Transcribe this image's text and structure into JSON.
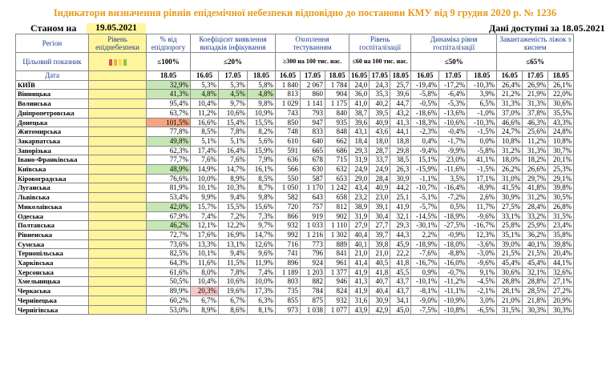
{
  "title": "Індикатори визначення рівнів епідемічної небезпеки відповідно до постанови КМУ від 9 грудня 2020 р. № 1236",
  "status_label": "Станом на",
  "status_date": "19.05.2021",
  "available": "Дані доступні за 18.05.2021",
  "headers": {
    "region": "Регіон",
    "level": "Рівень епіднебезпеки",
    "pct": "% від епідпорогу",
    "coef": "Коефіцієнт виявлення випадків інфікування",
    "testing": "Охоплення тестуванням",
    "hosp": "Рівень госпіталізації",
    "dyn": "Динаміка рівня госпіталізації",
    "beds": "Завантаженість ліжок з киснем",
    "indicator": "Цільовий показник",
    "date": "Дата"
  },
  "targets": {
    "pct": "≤100%",
    "coef": "≤20%",
    "testing": "≥300 на 100 тис. нас.",
    "hosp": "≤60 на 100 тис. нас.",
    "dyn": "≤50%",
    "beds": "≤65%"
  },
  "dates": {
    "d18": "18.05",
    "d16": "16.05",
    "d17": "17.05"
  },
  "level_colors": [
    "#d9534f",
    "#f0ad4e",
    "#f7e04b",
    "#8cc152"
  ],
  "rows": [
    {
      "name": "КИЇВ",
      "pct": "32,9%",
      "pct_c": "grn",
      "c": [
        "5,3%",
        "5,3%",
        "5,8%"
      ],
      "cc": [
        "",
        "",
        ""
      ],
      "t": [
        "1 840",
        "2 067",
        "1 784"
      ],
      "h": [
        "24,0",
        "24,3",
        "25,7"
      ],
      "d": [
        "-19,4%",
        "-17,2%",
        "-10,3%"
      ],
      "b": [
        "26,4%",
        "26,9%",
        "26,1%"
      ]
    },
    {
      "name": "Вінницька",
      "pct": "41,3%",
      "pct_c": "grn",
      "c": [
        "4,8%",
        "4,5%",
        "4,8%"
      ],
      "cc": [
        "grn",
        "grn",
        "grn"
      ],
      "t": [
        "813",
        "860",
        "904"
      ],
      "h": [
        "36,0",
        "35,3",
        "39,6"
      ],
      "d": [
        "-5,8%",
        "-6,4%",
        "3,9%"
      ],
      "b": [
        "21,2%",
        "21,9%",
        "22,0%"
      ]
    },
    {
      "name": "Волинська",
      "pct": "95,4%",
      "pct_c": "",
      "c": [
        "10,4%",
        "9,7%",
        "9,8%"
      ],
      "cc": [
        "",
        "",
        ""
      ],
      "t": [
        "1 029",
        "1 141",
        "1 175"
      ],
      "h": [
        "41,0",
        "40,2",
        "44,7"
      ],
      "d": [
        "-0,5%",
        "-5,3%",
        "6,5%"
      ],
      "b": [
        "31,3%",
        "31,3%",
        "30,6%"
      ]
    },
    {
      "name": "Дніпропетровська",
      "pct": "63,7%",
      "pct_c": "",
      "c": [
        "11,2%",
        "10,6%",
        "10,9%"
      ],
      "cc": [
        "",
        "",
        ""
      ],
      "t": [
        "743",
        "793",
        "840"
      ],
      "h": [
        "38,7",
        "39,5",
        "43,2"
      ],
      "d": [
        "-18,6%",
        "-13,6%",
        "-1,0%"
      ],
      "b": [
        "37,0%",
        "37,8%",
        "35,5%"
      ]
    },
    {
      "name": "Донецька",
      "pct": "101,5%",
      "pct_c": "red",
      "c": [
        "16,6%",
        "15,4%",
        "15,5%"
      ],
      "cc": [
        "",
        "",
        ""
      ],
      "t": [
        "850",
        "947",
        "935"
      ],
      "h": [
        "39,6",
        "40,9",
        "41,3"
      ],
      "d": [
        "-18,3%",
        "-10,6%",
        "-10,3%"
      ],
      "b": [
        "46,6%",
        "46,3%",
        "43,3%"
      ]
    },
    {
      "name": "Житомирська",
      "pct": "77,8%",
      "pct_c": "",
      "c": [
        "8,5%",
        "7,8%",
        "8,2%"
      ],
      "cc": [
        "",
        "",
        ""
      ],
      "t": [
        "748",
        "833",
        "848"
      ],
      "h": [
        "43,1",
        "43,6",
        "44,1"
      ],
      "d": [
        "-2,3%",
        "-0,4%",
        "-1,5%"
      ],
      "b": [
        "24,7%",
        "25,6%",
        "24,8%"
      ]
    },
    {
      "name": "Закарпатська",
      "pct": "49,8%",
      "pct_c": "grn",
      "c": [
        "5,1%",
        "5,1%",
        "5,6%"
      ],
      "cc": [
        "",
        "",
        ""
      ],
      "t": [
        "610",
        "640",
        "662"
      ],
      "h": [
        "18,4",
        "18,0",
        "18,8"
      ],
      "d": [
        "0,4%",
        "-1,7%",
        "0,0%"
      ],
      "b": [
        "10,8%",
        "11,2%",
        "10,8%"
      ]
    },
    {
      "name": "Запорізька",
      "pct": "62,3%",
      "pct_c": "",
      "c": [
        "17,4%",
        "16,4%",
        "15,9%"
      ],
      "cc": [
        "",
        "",
        ""
      ],
      "t": [
        "591",
        "665",
        "686"
      ],
      "h": [
        "29,3",
        "28,7",
        "29,8"
      ],
      "d": [
        "-9,4%",
        "-9,9%",
        "-5,8%"
      ],
      "b": [
        "31,2%",
        "31,3%",
        "30,7%"
      ]
    },
    {
      "name": "Івано-Франківська",
      "pct": "77,7%",
      "pct_c": "",
      "c": [
        "7,6%",
        "7,6%",
        "7,9%"
      ],
      "cc": [
        "",
        "",
        ""
      ],
      "t": [
        "636",
        "678",
        "715"
      ],
      "h": [
        "31,9",
        "33,7",
        "38,5"
      ],
      "d": [
        "15,1%",
        "23,0%",
        "41,1%"
      ],
      "b": [
        "18,0%",
        "18,2%",
        "20,1%"
      ]
    },
    {
      "name": "Київська",
      "pct": "48,9%",
      "pct_c": "grn",
      "c": [
        "14,9%",
        "14,7%",
        "16,1%"
      ],
      "cc": [
        "",
        "",
        ""
      ],
      "t": [
        "566",
        "630",
        "632"
      ],
      "h": [
        "24,9",
        "24,9",
        "26,3"
      ],
      "d": [
        "-15,9%",
        "-11,6%",
        "-1,5%"
      ],
      "b": [
        "26,2%",
        "26,6%",
        "25,3%"
      ]
    },
    {
      "name": "Кіровоградська",
      "pct": "76,6%",
      "pct_c": "",
      "c": [
        "10,0%",
        "8,9%",
        "8,5%"
      ],
      "cc": [
        "",
        "",
        ""
      ],
      "t": [
        "550",
        "587",
        "653"
      ],
      "h": [
        "29,0",
        "28,4",
        "30,9"
      ],
      "d": [
        "-1,1%",
        "3,5%",
        "17,1%"
      ],
      "b": [
        "31,0%",
        "29,7%",
        "29,1%"
      ]
    },
    {
      "name": "Луганська",
      "pct": "81,9%",
      "pct_c": "",
      "c": [
        "10,1%",
        "10,3%",
        "8,7%"
      ],
      "cc": [
        "",
        "",
        ""
      ],
      "t": [
        "1 050",
        "1 170",
        "1 242"
      ],
      "h": [
        "43,4",
        "40,9",
        "44,2"
      ],
      "d": [
        "-10,7%",
        "-16,4%",
        "-8,9%"
      ],
      "b": [
        "41,5%",
        "41,8%",
        "39,8%"
      ]
    },
    {
      "name": "Львівська",
      "pct": "53,4%",
      "pct_c": "",
      "c": [
        "9,9%",
        "9,4%",
        "9,8%"
      ],
      "cc": [
        "",
        "",
        ""
      ],
      "t": [
        "582",
        "643",
        "658"
      ],
      "h": [
        "23,2",
        "23,0",
        "25,1"
      ],
      "d": [
        "-5,1%",
        "-7,2%",
        "2,6%"
      ],
      "b": [
        "30,9%",
        "31,2%",
        "30,5%"
      ]
    },
    {
      "name": "Миколаївська",
      "pct": "42,0%",
      "pct_c": "grn",
      "c": [
        "15,7%",
        "15,5%",
        "15,6%"
      ],
      "cc": [
        "",
        "",
        ""
      ],
      "t": [
        "720",
        "757",
        "812"
      ],
      "h": [
        "38,9",
        "39,1",
        "41,9"
      ],
      "d": [
        "-5,7%",
        "0,5%",
        "11,7%"
      ],
      "b": [
        "27,5%",
        "28,4%",
        "26,8%"
      ]
    },
    {
      "name": "Одеська",
      "pct": "67,9%",
      "pct_c": "",
      "c": [
        "7,4%",
        "7,2%",
        "7,3%"
      ],
      "cc": [
        "",
        "",
        ""
      ],
      "t": [
        "866",
        "919",
        "902"
      ],
      "h": [
        "31,9",
        "30,4",
        "32,1"
      ],
      "d": [
        "-14,5%",
        "-18,9%",
        "-9,6%"
      ],
      "b": [
        "33,1%",
        "33,2%",
        "31,5%"
      ]
    },
    {
      "name": "Полтавська",
      "pct": "46,2%",
      "pct_c": "grn",
      "c": [
        "12,1%",
        "12,2%",
        "9,7%"
      ],
      "cc": [
        "",
        "",
        ""
      ],
      "t": [
        "932",
        "1 033",
        "1 110"
      ],
      "h": [
        "27,9",
        "27,7",
        "29,3"
      ],
      "d": [
        "-30,1%",
        "-27,5%",
        "-16,7%"
      ],
      "b": [
        "25,8%",
        "25,9%",
        "23,4%"
      ]
    },
    {
      "name": "Рівненська",
      "pct": "72,7%",
      "pct_c": "",
      "c": [
        "17,6%",
        "16,9%",
        "14,7%"
      ],
      "cc": [
        "",
        "",
        ""
      ],
      "t": [
        "992",
        "1 216",
        "1 302"
      ],
      "h": [
        "40,4",
        "39,7",
        "44,3"
      ],
      "d": [
        "2,2%",
        "-0,9%",
        "12,3%"
      ],
      "b": [
        "35,1%",
        "36,2%",
        "35,8%"
      ]
    },
    {
      "name": "Сумська",
      "pct": "73,6%",
      "pct_c": "",
      "c": [
        "13,3%",
        "13,1%",
        "12,6%"
      ],
      "cc": [
        "",
        "",
        ""
      ],
      "t": [
        "716",
        "773",
        "889"
      ],
      "h": [
        "40,1",
        "39,8",
        "45,9"
      ],
      "d": [
        "-18,9%",
        "-18,0%",
        "-3,6%"
      ],
      "b": [
        "39,0%",
        "40,1%",
        "39,8%"
      ]
    },
    {
      "name": "Тернопільська",
      "pct": "82,5%",
      "pct_c": "",
      "c": [
        "10,1%",
        "9,4%",
        "9,6%"
      ],
      "cc": [
        "",
        "",
        ""
      ],
      "t": [
        "741",
        "796",
        "841"
      ],
      "h": [
        "21,0",
        "21,0",
        "22,2"
      ],
      "d": [
        "-7,6%",
        "-8,8%",
        "-3,0%"
      ],
      "b": [
        "21,5%",
        "21,5%",
        "20,4%"
      ]
    },
    {
      "name": "Харківська",
      "pct": "64,3%",
      "pct_c": "",
      "c": [
        "11,6%",
        "11,5%",
        "11,9%"
      ],
      "cc": [
        "",
        "",
        ""
      ],
      "t": [
        "896",
        "924",
        "961"
      ],
      "h": [
        "41,4",
        "40,5",
        "41,8"
      ],
      "d": [
        "-16,7%",
        "-16,0%",
        "-9,6%"
      ],
      "b": [
        "45,4%",
        "45,4%",
        "44,1%"
      ]
    },
    {
      "name": "Херсонська",
      "pct": "61,6%",
      "pct_c": "",
      "c": [
        "8,0%",
        "7,8%",
        "7,4%"
      ],
      "cc": [
        "",
        "",
        ""
      ],
      "t": [
        "1 189",
        "1 203",
        "1 377"
      ],
      "h": [
        "41,9",
        "41,8",
        "45,5"
      ],
      "d": [
        "0,9%",
        "-0,7%",
        "9,1%"
      ],
      "b": [
        "30,6%",
        "32,1%",
        "32,6%"
      ]
    },
    {
      "name": "Хмельницька",
      "pct": "50,5%",
      "pct_c": "",
      "c": [
        "10,4%",
        "10,6%",
        "10,0%"
      ],
      "cc": [
        "",
        "",
        ""
      ],
      "t": [
        "803",
        "882",
        "946"
      ],
      "h": [
        "41,3",
        "40,7",
        "43,7"
      ],
      "d": [
        "-10,1%",
        "-11,2%",
        "-4,5%"
      ],
      "b": [
        "28,8%",
        "28,8%",
        "27,1%"
      ]
    },
    {
      "name": "Черкаська",
      "pct": "89,9%",
      "pct_c": "",
      "c": [
        "20,3%",
        "19,6%",
        "17,3%"
      ],
      "cc": [
        "pink",
        "",
        ""
      ],
      "t": [
        "735",
        "784",
        "824"
      ],
      "h": [
        "41,9",
        "40,4",
        "43,7"
      ],
      "d": [
        "-8,1%",
        "-11,1%",
        "-2,1%"
      ],
      "b": [
        "28,1%",
        "28,5%",
        "27,2%"
      ]
    },
    {
      "name": "Чернівецька",
      "pct": "60,2%",
      "pct_c": "",
      "c": [
        "6,7%",
        "6,7%",
        "6,3%"
      ],
      "cc": [
        "",
        "",
        ""
      ],
      "t": [
        "855",
        "875",
        "932"
      ],
      "h": [
        "31,6",
        "30,9",
        "34,1"
      ],
      "d": [
        "-9,0%",
        "-10,9%",
        "3,0%"
      ],
      "b": [
        "21,0%",
        "21,8%",
        "20,9%"
      ]
    },
    {
      "name": "Чернігівська",
      "pct": "53,0%",
      "pct_c": "",
      "c": [
        "8,9%",
        "8,6%",
        "8,1%"
      ],
      "cc": [
        "",
        "",
        ""
      ],
      "t": [
        "973",
        "1 038",
        "1 077"
      ],
      "h": [
        "43,9",
        "42,9",
        "45,0"
      ],
      "d": [
        "-7,5%",
        "-10,8%",
        "-6,5%"
      ],
      "b": [
        "31,5%",
        "30,3%",
        "30,3%"
      ]
    }
  ]
}
